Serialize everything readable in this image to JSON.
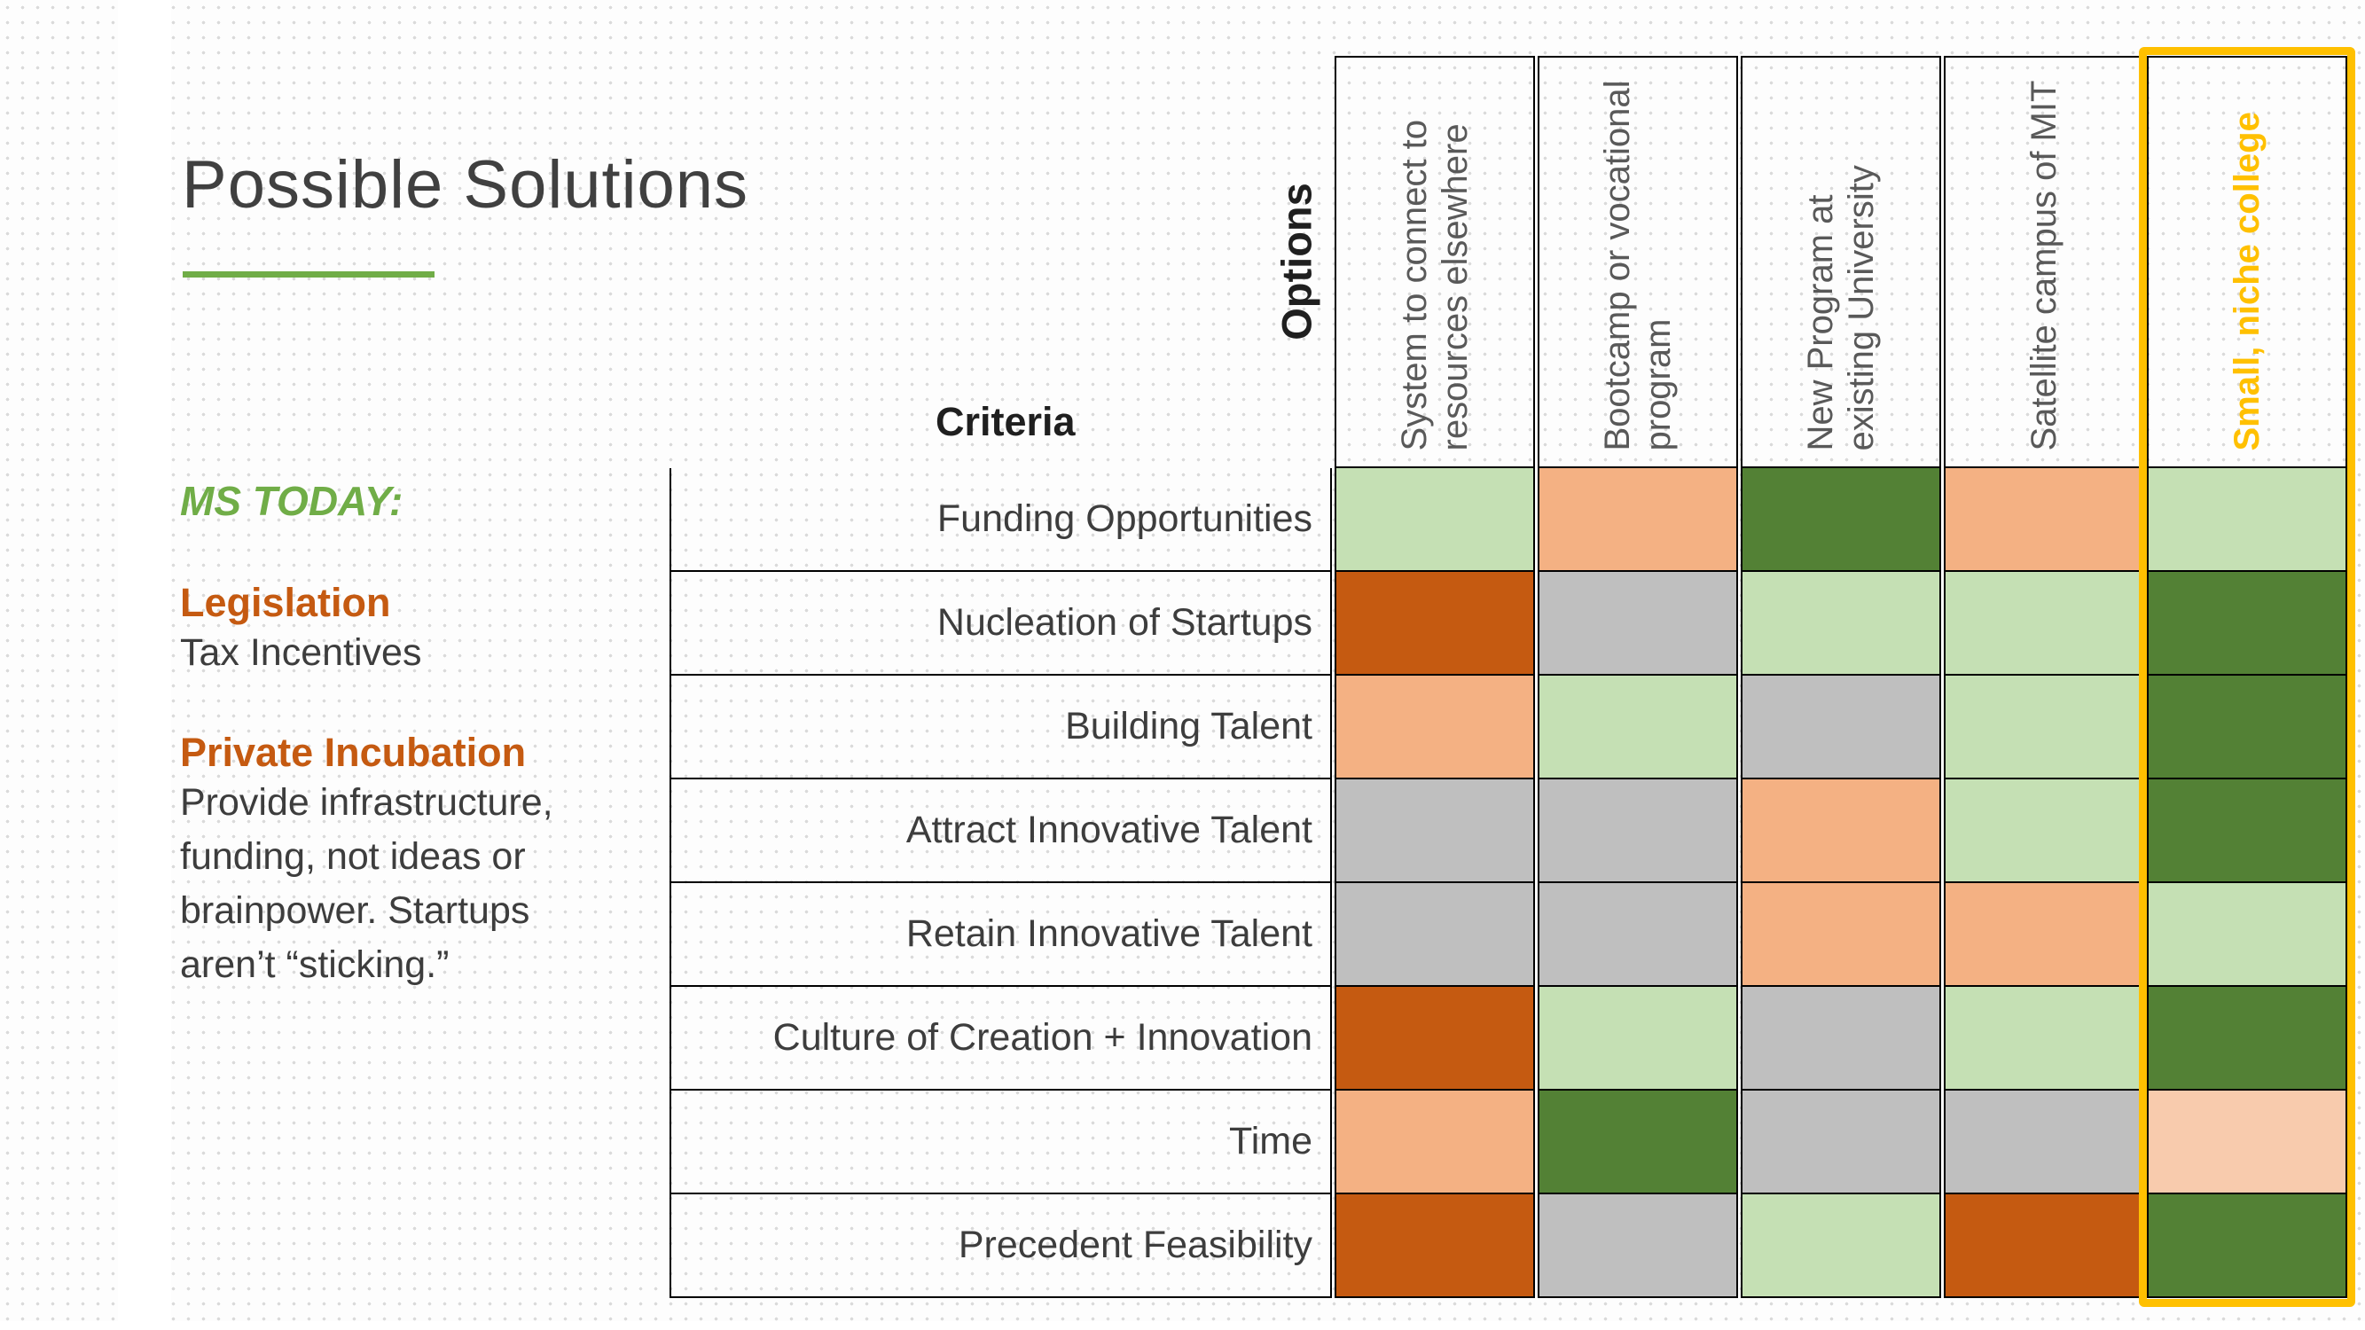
{
  "title": "Possible Solutions",
  "notes": {
    "ms_today": "MS TODAY:",
    "sections": [
      {
        "heading": "Legislation",
        "body": "Tax Incentives"
      },
      {
        "heading": "Private Incubation",
        "body": "Provide infrastructure, funding, not ideas or brainpower.  Startups aren’t “sticking.”"
      }
    ]
  },
  "matrix": {
    "options_label": "Options",
    "criteria_label": "Criteria",
    "columns": [
      "System to connect to resources elsewhere",
      "Bootcamp or vocational program",
      "New Program at existing University",
      "Satellite campus of MIT",
      "Small, niche college"
    ],
    "highlighted_column_index": 4,
    "rows": [
      "Funding Opportunities",
      "Nucleation of Startups",
      "Building Talent",
      "Attract Innovative Talent",
      "Retain Innovative Talent",
      "Culture of Creation + Innovation",
      "Time",
      "Precedent Feasibility"
    ],
    "cells": [
      [
        "light-green",
        "salmon",
        "dark-green",
        "salmon",
        "light-green"
      ],
      [
        "rust",
        "gray",
        "light-green",
        "light-green",
        "dark-green"
      ],
      [
        "salmon",
        "light-green",
        "gray",
        "light-green",
        "dark-green"
      ],
      [
        "gray",
        "gray",
        "salmon",
        "light-green",
        "dark-green"
      ],
      [
        "gray",
        "gray",
        "salmon",
        "salmon",
        "light-green"
      ],
      [
        "rust",
        "light-green",
        "gray",
        "light-green",
        "dark-green"
      ],
      [
        "salmon",
        "dark-green",
        "gray",
        "gray",
        "peach"
      ],
      [
        "rust",
        "gray",
        "light-green",
        "rust",
        "dark-green"
      ]
    ]
  },
  "colors": {
    "accent_green": "#70AD47",
    "heading_rust": "#C55A11",
    "highlight_gold": "#FFC000",
    "cell_light_green": "#C5E0B4",
    "cell_dark_green": "#538135",
    "cell_salmon": "#F4B183",
    "cell_peach": "#F8CBAD",
    "cell_gray": "#BFBFBF",
    "cell_rust": "#C55A11"
  }
}
